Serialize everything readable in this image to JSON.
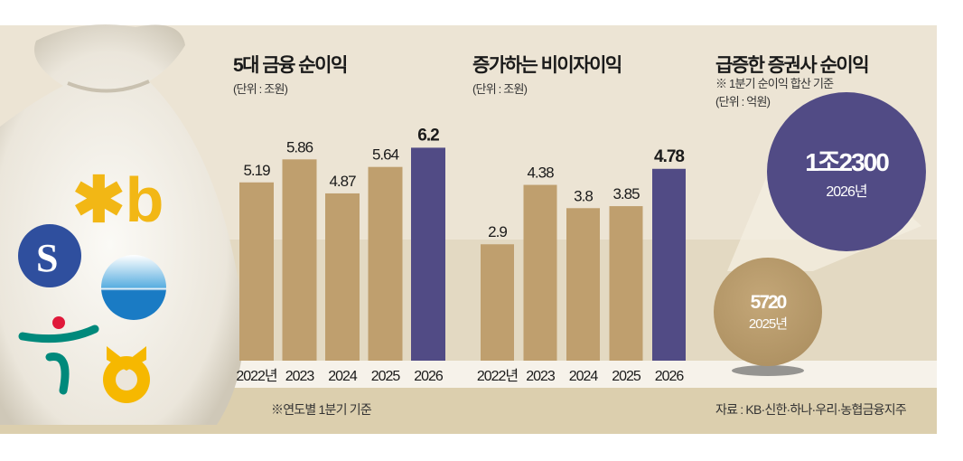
{
  "colors": {
    "past": "#bf9f6e",
    "current": "#514b85",
    "bg": "#ece4d4"
  },
  "chart_data": [
    {
      "type": "bar",
      "title": "5대 금융 순이익",
      "unit": "(단위 : 조원)",
      "categories": [
        "2022년",
        "2023",
        "2024",
        "2025",
        "2026"
      ],
      "values": [
        5.19,
        5.86,
        4.87,
        5.64,
        6.2
      ],
      "labels": [
        "5.19",
        "5.86",
        "4.87",
        "5.64",
        "6.2"
      ],
      "highlight_index": 4
    },
    {
      "type": "bar",
      "title": "증가하는 비이자이익",
      "unit": "(단위 : 조원)",
      "categories": [
        "2022년",
        "2023",
        "2024",
        "2025",
        "2026"
      ],
      "values": [
        2.9,
        4.38,
        3.8,
        3.85,
        4.78
      ],
      "labels": [
        "2.9",
        "4.38",
        "3.8",
        "3.85",
        "4.78"
      ],
      "highlight_index": 4
    },
    {
      "type": "bubble",
      "title": "급증한 증권사 순이익",
      "note": "※ 1분기 순이익 합산 기준",
      "unit": "(단위 : 억원)",
      "points": [
        {
          "label": "5720",
          "year": "2025년",
          "value": 5720
        },
        {
          "label": "1조2300",
          "year": "2026년",
          "value": 12300
        }
      ]
    }
  ],
  "footnote": "※연도별 1분기 기준",
  "source": "자료 : KB·신한·하나·우리·농협금융지주",
  "logos": [
    "KB",
    "신한",
    "우리",
    "하나",
    "농협"
  ]
}
